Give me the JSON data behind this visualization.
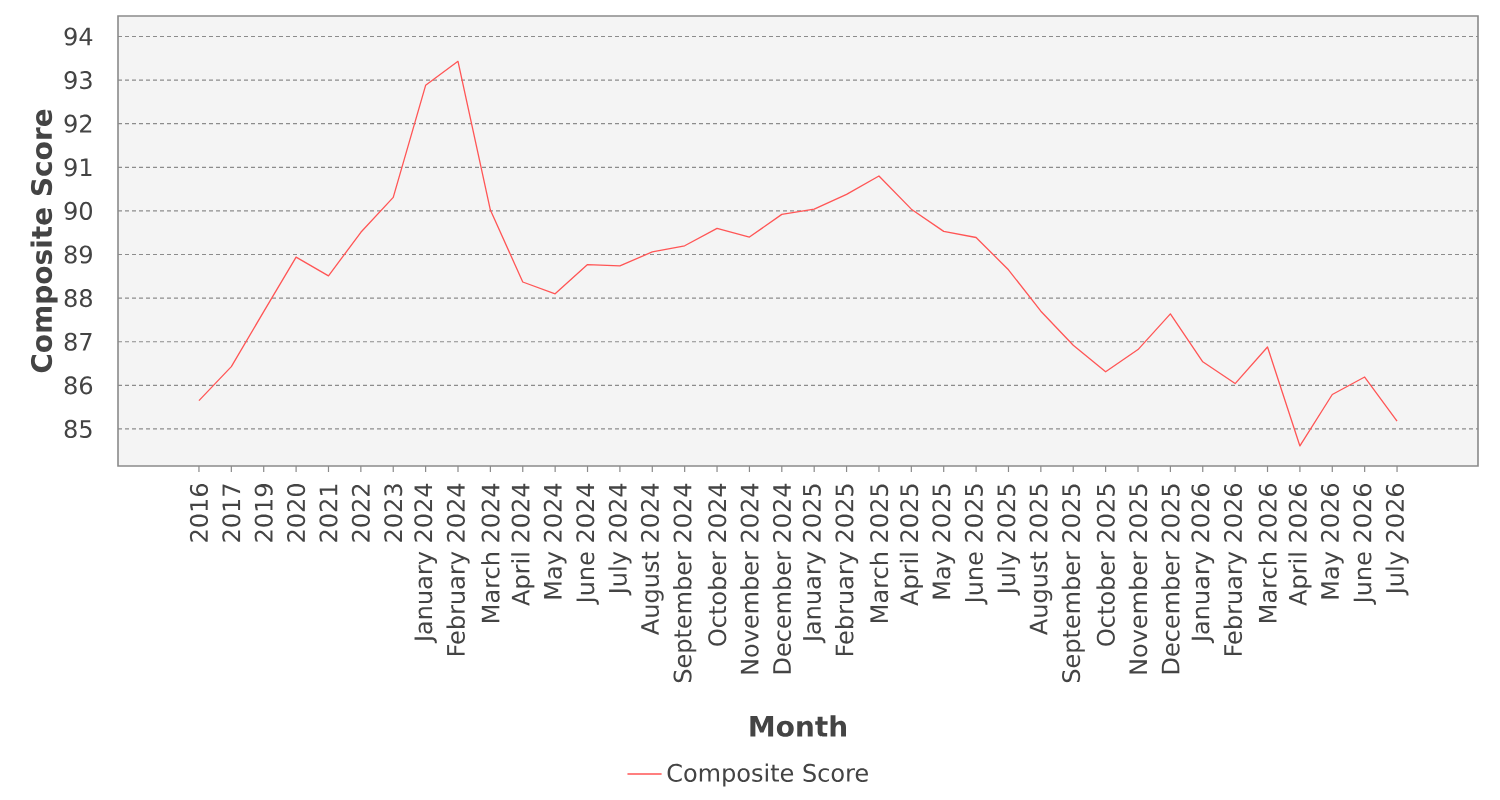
{
  "chart_data": {
    "type": "line",
    "xlabel": "Month",
    "ylabel": "Composite Score",
    "categories": [
      "2016",
      "2017",
      "2019",
      "2020",
      "2021",
      "2022",
      "2023",
      "January 2024",
      "February 2024",
      "March 2024",
      "April 2024",
      "May 2024",
      "June 2024",
      "July 2024",
      "August 2024",
      "September 2024",
      "October 2024",
      "November 2024",
      "December 2024",
      "January 2025",
      "February 2025",
      "March 2025",
      "April 2025",
      "May 2025",
      "June 2025",
      "July 2025",
      "August 2025",
      "September 2025",
      "October 2025",
      "November 2025",
      "December 2025",
      "January 2026",
      "February 2026",
      "March 2026",
      "April 2026",
      "May 2026",
      "June 2026",
      "July 2026"
    ],
    "series": [
      {
        "name": "Composite Score",
        "color": "#ff5555",
        "values": [
          85.65,
          86.43,
          87.69,
          88.94,
          88.51,
          89.51,
          90.31,
          92.88,
          93.43,
          90.02,
          88.37,
          88.1,
          88.77,
          88.74,
          89.06,
          89.2,
          89.6,
          89.4,
          89.92,
          90.04,
          90.38,
          90.8,
          90.04,
          89.53,
          89.39,
          88.65,
          87.7,
          86.92,
          86.31,
          86.82,
          87.64,
          86.54,
          86.04,
          86.88,
          84.61,
          85.79,
          86.19,
          85.18
        ]
      }
    ],
    "ylim": [
      84.15,
      94.47
    ],
    "yticks": [
      85,
      86,
      87,
      88,
      89,
      90,
      91,
      92,
      93,
      94
    ],
    "grid": "y",
    "legend": "bottom",
    "marker": "none",
    "line_style": "solid"
  }
}
